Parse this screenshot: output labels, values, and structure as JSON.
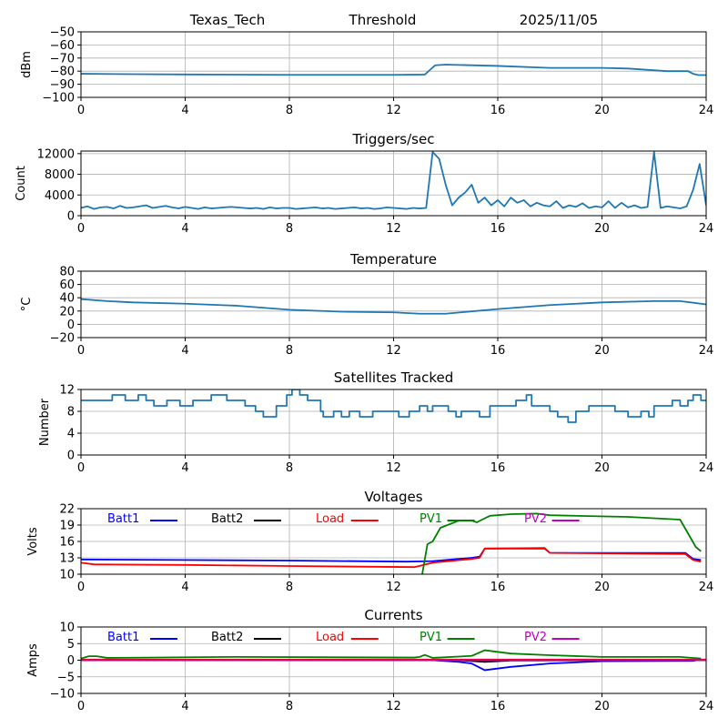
{
  "header": {
    "site": "Texas_Tech",
    "date": "2025/11/05"
  },
  "chart_data": [
    {
      "type": "line",
      "title": "Threshold",
      "xlabel": "",
      "ylabel": "dBm",
      "xlim": [
        0,
        24
      ],
      "ylim": [
        -100,
        -50
      ],
      "xticks": [
        "0",
        "4",
        "8",
        "12",
        "16",
        "20",
        "24"
      ],
      "yticks": [
        -100,
        -90,
        -80,
        -70,
        -60,
        -50
      ],
      "ytick_labels": [
        "−100",
        "−90",
        "−80",
        "−70",
        "−60",
        "−50"
      ],
      "grid": true,
      "series": [
        {
          "name": "Threshold",
          "color": "#1f77b4",
          "x": [
            0,
            2,
            4,
            8,
            12,
            13.2,
            13.4,
            13.6,
            14,
            16,
            18,
            20,
            21,
            22.5,
            23.3,
            23.5,
            23.7,
            24
          ],
          "y": [
            -82,
            -82.3,
            -82.5,
            -82.8,
            -82.8,
            -82.6,
            -79,
            -75.5,
            -75,
            -76,
            -77.5,
            -77.5,
            -78,
            -80,
            -80,
            -82,
            -83,
            -83
          ]
        }
      ]
    },
    {
      "type": "line",
      "title": "Triggers/sec",
      "xlabel": "",
      "ylabel": "Count",
      "xlim": [
        0,
        24
      ],
      "ylim": [
        0,
        12500
      ],
      "xticks": [
        "0",
        "4",
        "8",
        "12",
        "16",
        "20",
        "24"
      ],
      "yticks": [
        0,
        4000,
        8000,
        12000
      ],
      "ytick_labels": [
        "0",
        "4000",
        "8000",
        "12000"
      ],
      "grid": true,
      "series": [
        {
          "name": "Triggers",
          "color": "#1f77b4",
          "x_step": 0.25,
          "y": [
            1500,
            1800,
            1300,
            1600,
            1700,
            1400,
            1900,
            1500,
            1600,
            1800,
            2000,
            1500,
            1700,
            1900,
            1600,
            1400,
            1700,
            1500,
            1300,
            1600,
            1400,
            1500,
            1600,
            1700,
            1600,
            1500,
            1400,
            1500,
            1300,
            1600,
            1400,
            1500,
            1500,
            1300,
            1400,
            1500,
            1600,
            1400,
            1500,
            1300,
            1400,
            1500,
            1600,
            1400,
            1500,
            1300,
            1400,
            1600,
            1500,
            1400,
            1300,
            1500,
            1400,
            1500,
            12300,
            11000,
            6000,
            2000,
            3500,
            4500,
            6000,
            2500,
            3500,
            2000,
            3000,
            1800,
            3500,
            2500,
            3000,
            1800,
            2500,
            2000,
            1800,
            2800,
            1500,
            2000,
            1700,
            2400,
            1500,
            1800,
            1600,
            2800,
            1500,
            2500,
            1600,
            2000,
            1500,
            1700,
            12300,
            1500,
            1800,
            1600,
            1400,
            1800,
            5000,
            10000,
            2000
          ]
        }
      ]
    },
    {
      "type": "line",
      "title": "Temperature",
      "xlabel": "",
      "ylabel": "°C",
      "xlim": [
        0,
        24
      ],
      "ylim": [
        -20,
        80
      ],
      "xticks": [
        "0",
        "4",
        "8",
        "12",
        "16",
        "20",
        "24"
      ],
      "yticks": [
        -20,
        0,
        20,
        40,
        60,
        80
      ],
      "ytick_labels": [
        "−20",
        "0",
        "20",
        "40",
        "60",
        "80"
      ],
      "grid": true,
      "series": [
        {
          "name": "Temperature",
          "color": "#1f77b4",
          "x": [
            0,
            1,
            2,
            4,
            6,
            8,
            10,
            12,
            13,
            14,
            16,
            18,
            20,
            22,
            23,
            24
          ],
          "y": [
            38,
            35,
            33,
            31,
            28,
            22,
            19,
            18,
            16,
            16,
            23,
            29,
            33,
            35,
            35,
            30
          ]
        }
      ]
    },
    {
      "type": "line",
      "title": "Satellites Tracked",
      "xlabel": "",
      "ylabel": "Number",
      "xlim": [
        0,
        24
      ],
      "ylim": [
        0,
        12
      ],
      "xticks": [
        "0",
        "4",
        "8",
        "12",
        "16",
        "20",
        "24"
      ],
      "yticks": [
        0,
        4,
        8,
        12
      ],
      "ytick_labels": [
        "0",
        "4",
        "8",
        "12"
      ],
      "grid": true,
      "step": true,
      "series": [
        {
          "name": "Satellites",
          "color": "#1f77b4",
          "x": [
            0,
            1.2,
            1.7,
            2.2,
            2.5,
            2.8,
            3.3,
            3.8,
            4.3,
            5,
            5.6,
            6.3,
            6.7,
            7,
            7.5,
            7.9,
            8.1,
            8.4,
            8.7,
            9.2,
            9.3,
            9.7,
            10,
            10.3,
            10.7,
            11.2,
            12.2,
            12.6,
            13,
            13.3,
            13.5,
            14.1,
            14.4,
            14.6,
            15.3,
            15.7,
            16.7,
            17.1,
            17.3,
            18,
            18.3,
            18.7,
            19,
            19.5,
            20.5,
            21,
            21.5,
            21.8,
            22,
            22.7,
            23,
            23.3,
            23.5,
            23.8,
            24
          ],
          "y": [
            10,
            11,
            10,
            11,
            10,
            9,
            10,
            9,
            10,
            11,
            10,
            9,
            8,
            7,
            9,
            11,
            12,
            11,
            10,
            8,
            7,
            8,
            7,
            8,
            7,
            8,
            7,
            8,
            9,
            8,
            9,
            8,
            7,
            8,
            7,
            9,
            10,
            11,
            9,
            8,
            7,
            6,
            8,
            9,
            8,
            7,
            8,
            7,
            9,
            10,
            9,
            10,
            11,
            10,
            10
          ]
        }
      ]
    },
    {
      "type": "line",
      "title": "Voltages",
      "xlabel": "",
      "ylabel": "Volts",
      "xlim": [
        0,
        24
      ],
      "ylim": [
        10,
        22
      ],
      "xticks": [
        "0",
        "4",
        "8",
        "12",
        "16",
        "20",
        "24"
      ],
      "yticks": [
        10,
        13,
        16,
        19,
        22
      ],
      "ytick_labels": [
        "10",
        "13",
        "16",
        "19",
        "22"
      ],
      "grid": true,
      "legend": "top",
      "series": [
        {
          "name": "Batt1",
          "color": "#0000ff",
          "x": [
            0,
            4,
            8,
            12.5,
            13.5,
            15,
            15.3,
            15.5,
            17.8,
            18,
            23.2,
            23.5,
            23.8
          ],
          "y": [
            12.7,
            12.6,
            12.5,
            12.3,
            12.4,
            13,
            13.2,
            14.7,
            14.7,
            13.9,
            13.9,
            12.8,
            12.6
          ]
        },
        {
          "name": "Batt2",
          "color": "#000000",
          "x": [],
          "y": []
        },
        {
          "name": "Load",
          "color": "#ff0000",
          "x": [
            0,
            0.5,
            4,
            8,
            12.8,
            13.5,
            15,
            15.3,
            15.5,
            17.8,
            18,
            23.2,
            23.5,
            23.8
          ],
          "y": [
            12.1,
            11.8,
            11.7,
            11.5,
            11.3,
            12.1,
            12.8,
            13,
            14.7,
            14.8,
            13.9,
            13.7,
            12.6,
            12.3
          ]
        },
        {
          "name": "PV1",
          "color": "#008000",
          "x": [
            13,
            13.1,
            13.3,
            13.5,
            13.8,
            14.5,
            15,
            15.2,
            15.4,
            15.7,
            16.5,
            17.5,
            18,
            21,
            23,
            23.3,
            23.6,
            23.8
          ],
          "y": [
            9,
            10,
            15.5,
            16,
            18.5,
            19.8,
            19.8,
            19.5,
            20,
            20.7,
            21,
            21.1,
            20.8,
            20.5,
            20,
            17.5,
            15,
            14.2
          ]
        },
        {
          "name": "PV2",
          "color": "#bf00bf",
          "x": [],
          "y": []
        }
      ]
    },
    {
      "type": "line",
      "title": "Currents",
      "xlabel": "",
      "ylabel": "Amps",
      "xlim": [
        0,
        24
      ],
      "ylim": [
        -10,
        10
      ],
      "xticks": [
        "0",
        "4",
        "8",
        "12",
        "16",
        "20",
        "24"
      ],
      "yticks": [
        -10,
        -5,
        0,
        5,
        10
      ],
      "ytick_labels": [
        "−10",
        "−5",
        "0",
        "5",
        "10"
      ],
      "grid": true,
      "legend": "top",
      "series": [
        {
          "name": "Batt1",
          "color": "#0000ff",
          "x": [
            0,
            13.5,
            14.5,
            15,
            15.5,
            16.5,
            18,
            20,
            23.5,
            23.8
          ],
          "y": [
            0,
            0,
            -0.5,
            -1,
            -3,
            -2,
            -1,
            -0.3,
            -0.2,
            0.3
          ]
        },
        {
          "name": "Batt2",
          "color": "#000000",
          "x": [
            0,
            14.5,
            15.5,
            16.5,
            24
          ],
          "y": [
            0,
            0,
            -0.5,
            -0.1,
            0
          ]
        },
        {
          "name": "Load",
          "color": "#ff0000",
          "x": [
            0,
            24
          ],
          "y": [
            0.2,
            0.2
          ]
        },
        {
          "name": "PV1",
          "color": "#008000",
          "x": [
            0,
            0.3,
            0.6,
            1,
            6,
            12.8,
            13,
            13.2,
            13.5,
            15,
            15.5,
            16.5,
            18,
            20,
            23,
            23.8
          ],
          "y": [
            0.5,
            1.2,
            1.2,
            0.7,
            1.0,
            0.8,
            1.0,
            1.6,
            0.7,
            1.3,
            3,
            2,
            1.5,
            1,
            1,
            0.5
          ]
        },
        {
          "name": "PV2",
          "color": "#bf00bf",
          "x": [
            0,
            24
          ],
          "y": [
            0,
            0
          ]
        }
      ]
    }
  ]
}
